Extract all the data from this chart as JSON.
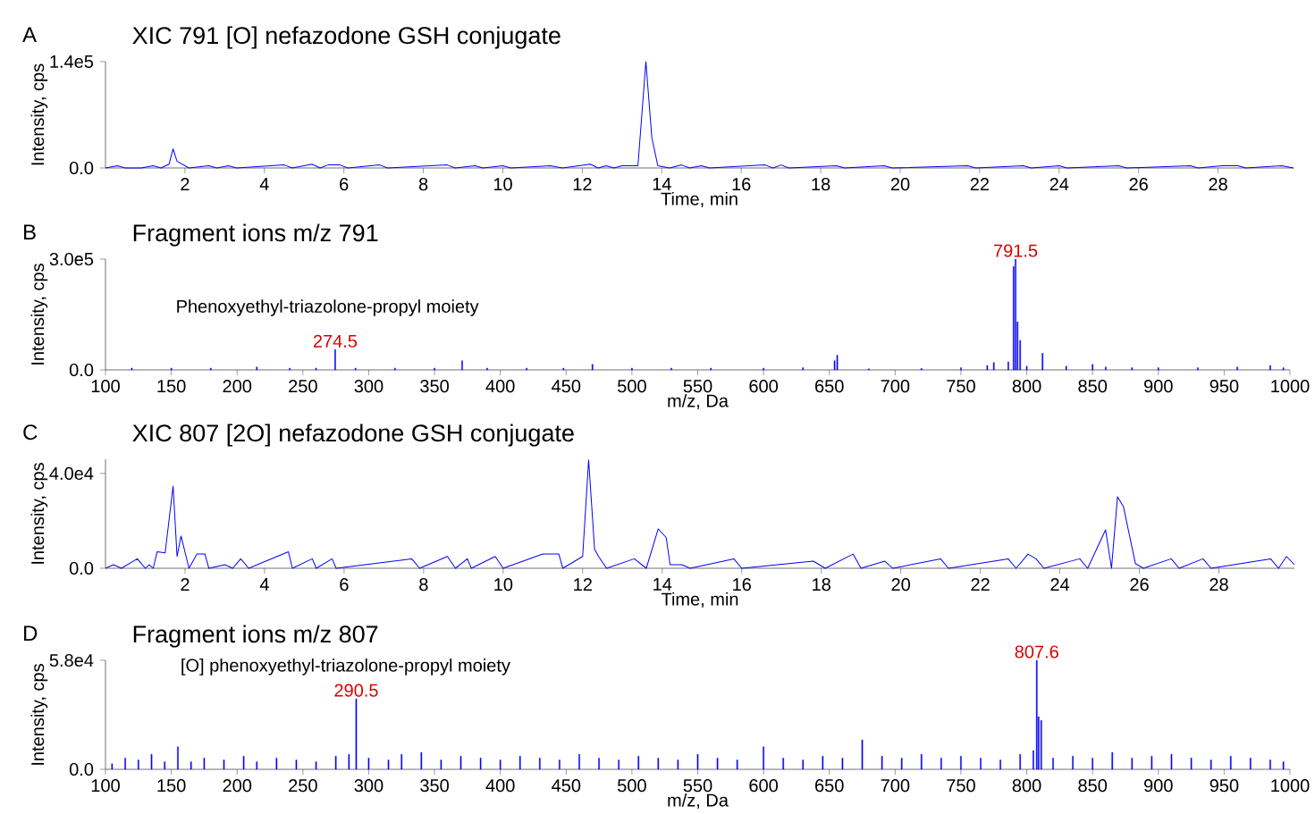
{
  "chart_data": [
    {
      "type": "line",
      "title": "XIC 791 [O] nefazodone GSH conjugate",
      "xlabel": "Time, min",
      "ylabel": "Intensity, cps",
      "color": "#0000ff",
      "xlim": [
        0,
        29.9
      ],
      "ylim": [
        0,
        140000
      ],
      "xticks": [
        2,
        4,
        6,
        8,
        10,
        12,
        14,
        16,
        18,
        20,
        22,
        24,
        26,
        28
      ],
      "yticks": [
        {
          "value": 0,
          "label": "0.0"
        },
        {
          "value": 140000,
          "label": "1.4e5"
        }
      ],
      "annotations": [
        "A"
      ],
      "x": [
        0,
        0.3,
        0.5,
        0.9,
        1.2,
        1.4,
        1.6,
        1.7,
        1.8,
        2.1,
        2.6,
        2.8,
        3.1,
        3.3,
        4.5,
        4.7,
        5.2,
        5.4,
        5.6,
        5.9,
        6.1,
        6.9,
        7.1,
        8.6,
        8.8,
        9.3,
        9.5,
        10.0,
        10.2,
        11.2,
        11.5,
        12.2,
        12.4,
        12.6,
        12.8,
        13.0,
        13.4,
        13.6,
        13.75,
        13.9,
        14.2,
        14.5,
        14.7,
        15.0,
        15.2,
        16.6,
        16.8,
        17.0,
        17.2,
        18.4,
        18.6,
        19.6,
        19.8,
        21.7,
        21.9,
        23.1,
        23.3,
        24.0,
        24.2,
        25.5,
        25.7,
        27.3,
        27.5,
        28.1,
        28.5,
        28.7,
        29.6,
        29.9
      ],
      "values": [
        0,
        3000,
        0,
        0,
        3000,
        0,
        5000,
        25000,
        9000,
        0,
        3000,
        0,
        3000,
        0,
        4000,
        0,
        5000,
        0,
        4000,
        4000,
        0,
        4000,
        0,
        4000,
        0,
        3000,
        0,
        3000,
        0,
        3000,
        0,
        5000,
        0,
        3000,
        0,
        3000,
        3000,
        140000,
        40000,
        3000,
        0,
        4000,
        0,
        3000,
        0,
        4000,
        0,
        4000,
        0,
        3000,
        0,
        3000,
        0,
        3000,
        0,
        3000,
        0,
        3000,
        0,
        3000,
        0,
        3000,
        0,
        3000,
        3000,
        0,
        3000,
        0
      ]
    },
    {
      "type": "bar",
      "title": "Fragment ions m/z 791",
      "xlabel": "m/z, Da",
      "ylabel": "Intensity, cps",
      "color": "#0000ff",
      "xlim": [
        100,
        1000
      ],
      "ylim": [
        0,
        300000
      ],
      "xticks": [
        100,
        150,
        200,
        250,
        300,
        350,
        400,
        450,
        500,
        550,
        600,
        650,
        700,
        750,
        800,
        850,
        900,
        950,
        1000
      ],
      "yticks": [
        {
          "value": 0,
          "label": "0.0"
        },
        {
          "value": 300000,
          "label": "3.0e5"
        }
      ],
      "annotations": [
        "B",
        "Phenoxyethyl-triazolone-propyl moiety",
        {
          "text": "274.5",
          "x": 274.5,
          "y": 55000
        },
        {
          "text": "791.5",
          "x": 791.5,
          "y": 300000
        }
      ],
      "x": [
        120,
        150,
        180,
        215,
        240,
        260,
        274.5,
        290,
        320,
        350,
        371,
        390,
        420,
        448,
        470,
        500,
        530,
        560,
        600,
        630,
        654,
        656,
        680,
        720,
        750,
        770,
        775,
        786,
        790,
        791.5,
        793,
        795,
        800,
        812,
        830,
        850,
        860,
        880,
        900,
        930,
        960,
        985,
        995
      ],
      "values": [
        5000,
        5000,
        5000,
        8000,
        5000,
        5000,
        55000,
        5000,
        5000,
        5000,
        25000,
        5000,
        5000,
        5000,
        15000,
        5000,
        5000,
        5000,
        5000,
        6000,
        25000,
        40000,
        3000,
        4000,
        6000,
        12000,
        20000,
        22000,
        280000,
        300000,
        130000,
        80000,
        10000,
        45000,
        10000,
        15000,
        8000,
        6000,
        6000,
        6000,
        8000,
        12000,
        6000
      ]
    },
    {
      "type": "line",
      "title": "XIC 807 [2O] nefazodone GSH conjugate",
      "xlabel": "Time, min",
      "ylabel": "Intensity, cps",
      "color": "#0000ff",
      "xlim": [
        0,
        29.9
      ],
      "ylim": [
        0,
        46000
      ],
      "xticks": [
        2,
        4,
        6,
        8,
        10,
        12,
        14,
        16,
        18,
        20,
        22,
        24,
        26,
        28
      ],
      "yticks": [
        {
          "value": 0,
          "label": "0.0"
        },
        {
          "value": 40000,
          "label": "4.0e4"
        }
      ],
      "annotations": [
        "C"
      ],
      "x": [
        0,
        0.2,
        0.4,
        0.8,
        1.0,
        1.1,
        1.2,
        1.3,
        1.5,
        1.7,
        1.8,
        1.9,
        2.1,
        2.3,
        2.5,
        2.6,
        3.0,
        3.2,
        3.4,
        3.6,
        4.6,
        4.7,
        5.2,
        5.3,
        5.7,
        5.8,
        7.7,
        7.9,
        8.6,
        8.8,
        9.1,
        9.2,
        9.8,
        10.0,
        11.0,
        11.4,
        11.5,
        12.0,
        12.15,
        12.3,
        12.4,
        12.6,
        13.3,
        13.6,
        13.9,
        14.1,
        14.2,
        14.5,
        14.7,
        15.8,
        16.0,
        17.8,
        18.1,
        18.8,
        19.0,
        19.6,
        19.8,
        21.0,
        21.2,
        22.7,
        22.9,
        23.2,
        23.4,
        23.6,
        24.5,
        24.7,
        25.15,
        25.3,
        25.45,
        25.6,
        25.9,
        26.1,
        26.8,
        27.0,
        27.6,
        27.8,
        29.3,
        29.5,
        29.7,
        29.9
      ],
      "values": [
        0,
        1500,
        0,
        4000,
        0,
        1500,
        0,
        7000,
        6500,
        34700,
        5000,
        13600,
        0,
        6000,
        6000,
        0,
        1500,
        0,
        4000,
        0,
        7000,
        0,
        4000,
        0,
        4000,
        0,
        4000,
        0,
        5000,
        0,
        4000,
        0,
        5000,
        0,
        6000,
        6000,
        0,
        5000,
        45700,
        8000,
        5000,
        0,
        4000,
        0,
        16600,
        13000,
        1500,
        1500,
        0,
        4000,
        0,
        3000,
        0,
        6000,
        0,
        3000,
        0,
        4000,
        0,
        4000,
        0,
        6000,
        4000,
        0,
        4000,
        0,
        16200,
        0,
        30200,
        26000,
        2000,
        0,
        4000,
        0,
        4000,
        0,
        4000,
        0,
        5000,
        1500
      ]
    },
    {
      "type": "bar",
      "title": "Fragment ions m/z 807",
      "xlabel": "m/z, Da",
      "ylabel": "Intensity, cps",
      "color": "#0000ff",
      "xlim": [
        100,
        1000
      ],
      "ylim": [
        0,
        58000
      ],
      "xticks": [
        100,
        150,
        200,
        250,
        300,
        350,
        400,
        450,
        500,
        550,
        600,
        650,
        700,
        750,
        800,
        850,
        900,
        950,
        1000
      ],
      "yticks": [
        {
          "value": 0,
          "label": "0.0"
        },
        {
          "value": 58000,
          "label": "5.8e4"
        }
      ],
      "annotations": [
        "D",
        "[O] phenoxyethyl-triazolone-propyl moiety",
        {
          "text": "290.5",
          "x": 290.5,
          "y": 37500
        },
        {
          "text": "807.6",
          "x": 807.6,
          "y": 58000
        }
      ],
      "x": [
        105,
        115,
        125,
        135,
        145,
        155,
        165,
        175,
        190,
        205,
        215,
        230,
        245,
        260,
        275,
        285,
        290.5,
        300,
        315,
        325,
        340,
        355,
        370,
        385,
        400,
        415,
        430,
        445,
        460,
        475,
        490,
        505,
        520,
        535,
        550,
        565,
        580,
        600,
        615,
        630,
        645,
        660,
        675,
        690,
        705,
        720,
        735,
        750,
        765,
        780,
        795,
        805,
        807.6,
        809,
        811,
        820,
        835,
        850,
        865,
        880,
        895,
        910,
        925,
        940,
        955,
        970,
        985,
        995
      ],
      "values": [
        3000,
        6000,
        5000,
        8000,
        4000,
        12000,
        4000,
        6000,
        5000,
        7000,
        4000,
        6000,
        5000,
        4000,
        7000,
        8000,
        37500,
        6000,
        5000,
        8000,
        9000,
        5000,
        7000,
        6000,
        5000,
        7000,
        6000,
        5000,
        8000,
        6000,
        5000,
        7000,
        6000,
        5000,
        8000,
        6000,
        5000,
        12000,
        6000,
        5000,
        7000,
        6000,
        15700,
        7000,
        6000,
        8000,
        6000,
        7000,
        6000,
        5000,
        8000,
        10000,
        58000,
        28000,
        26000,
        6000,
        7000,
        6000,
        9000,
        6000,
        7000,
        8000,
        6000,
        5000,
        7000,
        6000,
        5000,
        4000
      ]
    }
  ]
}
